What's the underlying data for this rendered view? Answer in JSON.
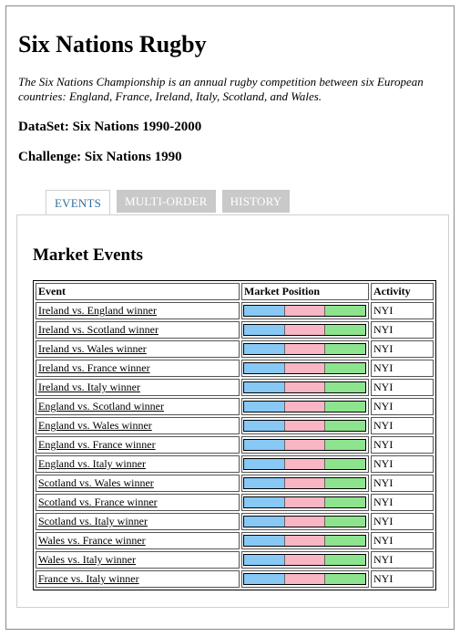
{
  "page": {
    "title": "Six Nations Rugby",
    "description": "The Six Nations Championship is an annual rugby competition between six European countries: England, France, Ireland, Italy, Scotland, and Wales.",
    "dataset": "DataSet: Six Nations 1990-2000",
    "challenge": "Challenge: Six Nations 1990"
  },
  "tabs": [
    {
      "label": "EVENTS",
      "active": true
    },
    {
      "label": "MULTI-ORDER",
      "active": false
    },
    {
      "label": "HISTORY",
      "active": false
    }
  ],
  "market": {
    "title": "Market Events",
    "columns": {
      "event": "Event",
      "position": "Market Position",
      "activity": "Activity"
    },
    "colors": {
      "bar_left": "#87c8f5",
      "bar_mid": "#f8b5c4",
      "bar_right": "#8ee48e"
    },
    "rows": [
      {
        "event": "Ireland vs. England winner",
        "activity": "NYI"
      },
      {
        "event": "Ireland vs. Scotland winner",
        "activity": "NYI"
      },
      {
        "event": "Ireland vs. Wales winner",
        "activity": "NYI"
      },
      {
        "event": "Ireland vs. France winner",
        "activity": "NYI"
      },
      {
        "event": "Ireland vs. Italy winner",
        "activity": "NYI"
      },
      {
        "event": "England vs. Scotland winner",
        "activity": "NYI"
      },
      {
        "event": "England vs. Wales winner",
        "activity": "NYI"
      },
      {
        "event": "England vs. France winner",
        "activity": "NYI"
      },
      {
        "event": "England vs. Italy winner",
        "activity": "NYI"
      },
      {
        "event": "Scotland vs. Wales winner",
        "activity": "NYI"
      },
      {
        "event": "Scotland vs. France winner",
        "activity": "NYI"
      },
      {
        "event": "Scotland vs. Italy winner",
        "activity": "NYI"
      },
      {
        "event": "Wales vs. France winner",
        "activity": "NYI"
      },
      {
        "event": "Wales vs. Italy winner",
        "activity": "NYI"
      },
      {
        "event": "France vs. Italy winner",
        "activity": "NYI"
      }
    ]
  }
}
